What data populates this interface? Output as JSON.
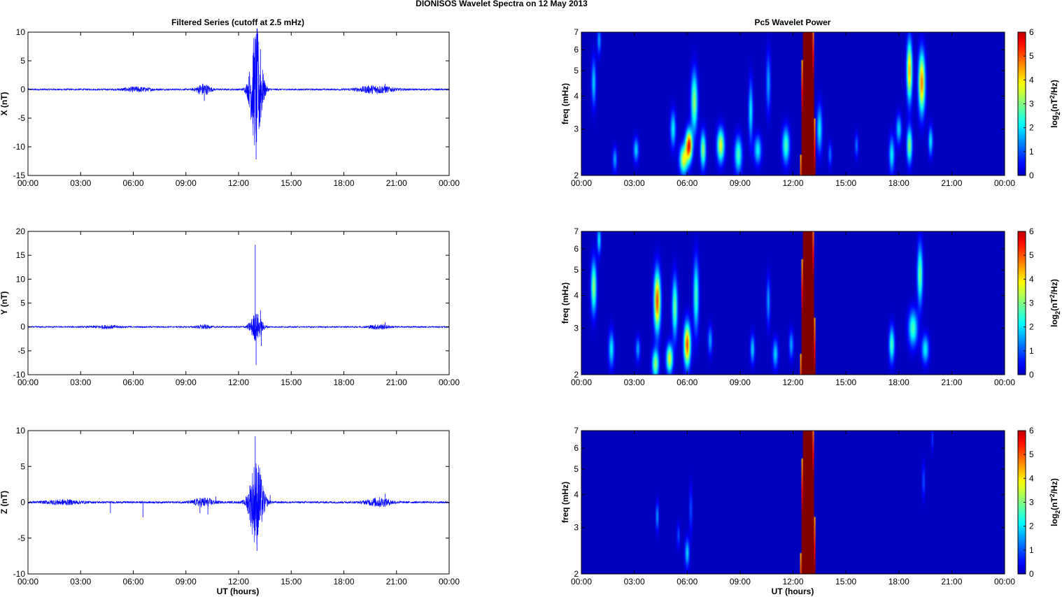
{
  "figure": {
    "title": "DIONISOS Wavelet Spectra on 12 May       2013",
    "left_title": "Filtered Series (cutoff at 2.5 mHz)",
    "right_title": "Pc5 Wavelet Power",
    "xlabel": "UT (hours)",
    "time_ticks": [
      "00:00",
      "03:00",
      "06:00",
      "09:00",
      "12:00",
      "15:00",
      "18:00",
      "21:00",
      "00:00"
    ]
  },
  "colors": {
    "series_line": "#0000ff",
    "spectrum_background": "#00008f",
    "spectrum_saturated": "#800000",
    "axis": "#000000"
  },
  "chart_data": [
    {
      "type": "line",
      "name": "x-series",
      "ylabel": "X (nT)",
      "ylim": [
        -15,
        10
      ],
      "yticks": [
        -15,
        -10,
        -5,
        0,
        5,
        10
      ],
      "xlim_hours": [
        0,
        24
      ],
      "baseline_noise_nT": 0.15,
      "bursts": [
        {
          "t": 6.2,
          "amp": 0.4,
          "width": 0.8
        },
        {
          "t": 10.0,
          "amp": 1.0,
          "width": 0.4
        },
        {
          "t": 13.0,
          "amp": 11.0,
          "width": 0.35
        },
        {
          "t": 19.8,
          "amp": 0.7,
          "width": 1.0
        }
      ],
      "spikes": [
        {
          "t": 10.05,
          "v": -2.0
        },
        {
          "t": 12.95,
          "v": 8.8
        },
        {
          "t": 13.0,
          "v": -12.2
        },
        {
          "t": 13.25,
          "v": 7.0
        },
        {
          "t": 13.2,
          "v": -6.5
        },
        {
          "t": 20.35,
          "v": 1.0
        }
      ]
    },
    {
      "type": "line",
      "name": "y-series",
      "ylabel": "Y (nT)",
      "ylim": [
        -10,
        20
      ],
      "yticks": [
        -10,
        -5,
        0,
        5,
        10,
        15,
        20
      ],
      "xlim_hours": [
        0,
        24
      ],
      "baseline_noise_nT": 0.15,
      "bursts": [
        {
          "t": 4.5,
          "amp": 0.3,
          "width": 0.8
        },
        {
          "t": 10.0,
          "amp": 0.4,
          "width": 0.4
        },
        {
          "t": 13.0,
          "amp": 3.0,
          "width": 0.35
        },
        {
          "t": 20.0,
          "amp": 0.5,
          "width": 0.6
        }
      ],
      "spikes": [
        {
          "t": 12.95,
          "v": 17.2
        },
        {
          "t": 13.0,
          "v": -8.0
        },
        {
          "t": 13.25,
          "v": 3.5
        },
        {
          "t": 13.3,
          "v": -4.0
        },
        {
          "t": 20.35,
          "v": 1.0
        }
      ]
    },
    {
      "type": "line",
      "name": "z-series",
      "ylabel": "Z (nT)",
      "ylim": [
        -10,
        10
      ],
      "yticks": [
        -10,
        -5,
        0,
        5,
        10
      ],
      "xlim_hours": [
        0,
        24
      ],
      "baseline_noise_nT": 0.15,
      "bursts": [
        {
          "t": 2.0,
          "amp": 0.3,
          "width": 1.0
        },
        {
          "t": 10.0,
          "amp": 0.6,
          "width": 0.6
        },
        {
          "t": 13.0,
          "amp": 6.0,
          "width": 0.4
        },
        {
          "t": 20.0,
          "amp": 0.6,
          "width": 0.7
        }
      ],
      "spikes": [
        {
          "t": 4.7,
          "v": -1.5
        },
        {
          "t": 6.55,
          "v": -2.1
        },
        {
          "t": 9.8,
          "v": -1.5
        },
        {
          "t": 10.25,
          "v": -1.7
        },
        {
          "t": 10.7,
          "v": 0.8
        },
        {
          "t": 12.95,
          "v": 9.2
        },
        {
          "t": 13.05,
          "v": -6.8
        },
        {
          "t": 13.2,
          "v": 4.8
        },
        {
          "t": 13.8,
          "v": 1.0
        },
        {
          "t": 20.35,
          "v": 1.2
        }
      ]
    },
    {
      "type": "heatmap",
      "name": "x-wavelet-power",
      "ylabel": "freq (mHz)",
      "yscale": "log",
      "ylim_mHz": [
        2,
        7
      ],
      "yticks": [
        2,
        3,
        4,
        5,
        6,
        7
      ],
      "xlim_hours": [
        0,
        24
      ],
      "colorbar_label": "log2(nT2/Hz)",
      "clim": [
        0,
        6
      ],
      "colorbar_ticks": [
        0,
        1,
        2,
        3,
        4,
        5,
        6
      ],
      "saturated_band_hours": [
        12.6,
        13.1
      ],
      "blobs": [
        {
          "t": 0.7,
          "f": 4.5,
          "a": 1.8,
          "w": 0.12,
          "h": 0.2
        },
        {
          "t": 1.0,
          "f": 6.5,
          "a": 1.5,
          "w": 0.1,
          "h": 0.12
        },
        {
          "t": 1.9,
          "f": 2.3,
          "a": 1.5,
          "w": 0.12,
          "h": 0.1
        },
        {
          "t": 3.1,
          "f": 2.5,
          "a": 1.8,
          "w": 0.14,
          "h": 0.1
        },
        {
          "t": 5.2,
          "f": 3.0,
          "a": 2.0,
          "w": 0.15,
          "h": 0.15
        },
        {
          "t": 5.8,
          "f": 2.3,
          "a": 3.5,
          "w": 0.22,
          "h": 0.12
        },
        {
          "t": 6.1,
          "f": 2.6,
          "a": 5.2,
          "w": 0.18,
          "h": 0.13
        },
        {
          "t": 6.4,
          "f": 3.8,
          "a": 3.0,
          "w": 0.18,
          "h": 0.25
        },
        {
          "t": 6.9,
          "f": 2.5,
          "a": 3.0,
          "w": 0.15,
          "h": 0.15
        },
        {
          "t": 7.9,
          "f": 2.6,
          "a": 3.5,
          "w": 0.2,
          "h": 0.14
        },
        {
          "t": 8.9,
          "f": 2.4,
          "a": 2.5,
          "w": 0.2,
          "h": 0.15
        },
        {
          "t": 9.6,
          "f": 3.5,
          "a": 2.0,
          "w": 0.12,
          "h": 0.25
        },
        {
          "t": 10.0,
          "f": 2.5,
          "a": 2.0,
          "w": 0.2,
          "h": 0.12
        },
        {
          "t": 10.6,
          "f": 4.5,
          "a": 1.5,
          "w": 0.12,
          "h": 0.25
        },
        {
          "t": 11.6,
          "f": 2.6,
          "a": 2.5,
          "w": 0.2,
          "h": 0.15
        },
        {
          "t": 13.5,
          "f": 3.0,
          "a": 2.0,
          "w": 0.15,
          "h": 0.2
        },
        {
          "t": 14.1,
          "f": 2.4,
          "a": 1.2,
          "w": 0.1,
          "h": 0.1
        },
        {
          "t": 15.6,
          "f": 2.6,
          "a": 1.2,
          "w": 0.1,
          "h": 0.1
        },
        {
          "t": 17.6,
          "f": 2.4,
          "a": 2.0,
          "w": 0.15,
          "h": 0.15
        },
        {
          "t": 18.0,
          "f": 3.0,
          "a": 1.8,
          "w": 0.15,
          "h": 0.12
        },
        {
          "t": 18.6,
          "f": 2.6,
          "a": 3.0,
          "w": 0.15,
          "h": 0.15
        },
        {
          "t": 18.6,
          "f": 5.0,
          "a": 4.2,
          "w": 0.15,
          "h": 0.25
        },
        {
          "t": 19.3,
          "f": 4.5,
          "a": 4.5,
          "w": 0.18,
          "h": 0.25
        },
        {
          "t": 19.8,
          "f": 2.7,
          "a": 2.0,
          "w": 0.12,
          "h": 0.12
        }
      ]
    },
    {
      "type": "heatmap",
      "name": "y-wavelet-power",
      "ylabel": "freq (mHz)",
      "yscale": "log",
      "ylim_mHz": [
        2,
        7
      ],
      "yticks": [
        2,
        3,
        4,
        5,
        6,
        7
      ],
      "xlim_hours": [
        0,
        24
      ],
      "colorbar_label": "log2(nT2/Hz)",
      "clim": [
        0,
        6
      ],
      "colorbar_ticks": [
        0,
        1,
        2,
        3,
        4,
        5,
        6
      ],
      "saturated_band_hours": [
        12.6,
        13.1
      ],
      "blobs": [
        {
          "t": 0.7,
          "f": 4.3,
          "a": 3.0,
          "w": 0.15,
          "h": 0.22
        },
        {
          "t": 1.0,
          "f": 6.5,
          "a": 2.0,
          "w": 0.1,
          "h": 0.12
        },
        {
          "t": 1.7,
          "f": 2.5,
          "a": 2.0,
          "w": 0.15,
          "h": 0.15
        },
        {
          "t": 3.2,
          "f": 2.5,
          "a": 1.5,
          "w": 0.12,
          "h": 0.1
        },
        {
          "t": 4.3,
          "f": 3.8,
          "a": 4.8,
          "w": 0.18,
          "h": 0.25
        },
        {
          "t": 4.2,
          "f": 2.2,
          "a": 3.0,
          "w": 0.18,
          "h": 0.12
        },
        {
          "t": 5.0,
          "f": 2.3,
          "a": 3.5,
          "w": 0.18,
          "h": 0.12
        },
        {
          "t": 5.3,
          "f": 3.6,
          "a": 2.8,
          "w": 0.15,
          "h": 0.25
        },
        {
          "t": 6.0,
          "f": 2.6,
          "a": 4.8,
          "w": 0.18,
          "h": 0.18
        },
        {
          "t": 6.5,
          "f": 4.0,
          "a": 2.5,
          "w": 0.15,
          "h": 0.3
        },
        {
          "t": 7.3,
          "f": 2.7,
          "a": 1.5,
          "w": 0.12,
          "h": 0.12
        },
        {
          "t": 9.7,
          "f": 2.5,
          "a": 1.8,
          "w": 0.12,
          "h": 0.12
        },
        {
          "t": 10.6,
          "f": 3.8,
          "a": 1.5,
          "w": 0.1,
          "h": 0.2
        },
        {
          "t": 11.0,
          "f": 2.4,
          "a": 1.8,
          "w": 0.15,
          "h": 0.12
        },
        {
          "t": 11.9,
          "f": 2.6,
          "a": 1.5,
          "w": 0.12,
          "h": 0.12
        },
        {
          "t": 17.6,
          "f": 2.6,
          "a": 2.5,
          "w": 0.15,
          "h": 0.15
        },
        {
          "t": 18.8,
          "f": 3.0,
          "a": 2.5,
          "w": 0.25,
          "h": 0.15
        },
        {
          "t": 19.2,
          "f": 4.8,
          "a": 2.8,
          "w": 0.15,
          "h": 0.25
        },
        {
          "t": 19.5,
          "f": 2.5,
          "a": 2.0,
          "w": 0.2,
          "h": 0.12
        }
      ]
    },
    {
      "type": "heatmap",
      "name": "z-wavelet-power",
      "ylabel": "freq (mHz)",
      "yscale": "log",
      "ylim_mHz": [
        2,
        7
      ],
      "yticks": [
        2,
        3,
        4,
        5,
        6,
        7
      ],
      "xlim_hours": [
        0,
        24
      ],
      "colorbar_label": "log2(nT2/Hz)",
      "clim": [
        0,
        6
      ],
      "colorbar_ticks": [
        0,
        1,
        2,
        3,
        4,
        5,
        6
      ],
      "saturated_band_hours": [
        12.6,
        13.1
      ],
      "blobs": [
        {
          "t": 4.3,
          "f": 3.3,
          "a": 1.5,
          "w": 0.08,
          "h": 0.12
        },
        {
          "t": 5.5,
          "f": 2.8,
          "a": 1.0,
          "w": 0.08,
          "h": 0.1
        },
        {
          "t": 6.0,
          "f": 2.4,
          "a": 1.8,
          "w": 0.12,
          "h": 0.12
        },
        {
          "t": 6.2,
          "f": 3.5,
          "a": 1.0,
          "w": 0.08,
          "h": 0.2
        },
        {
          "t": 19.4,
          "f": 4.5,
          "a": 1.0,
          "w": 0.08,
          "h": 0.15
        },
        {
          "t": 19.9,
          "f": 6.5,
          "a": 0.8,
          "w": 0.06,
          "h": 0.1
        }
      ]
    }
  ]
}
